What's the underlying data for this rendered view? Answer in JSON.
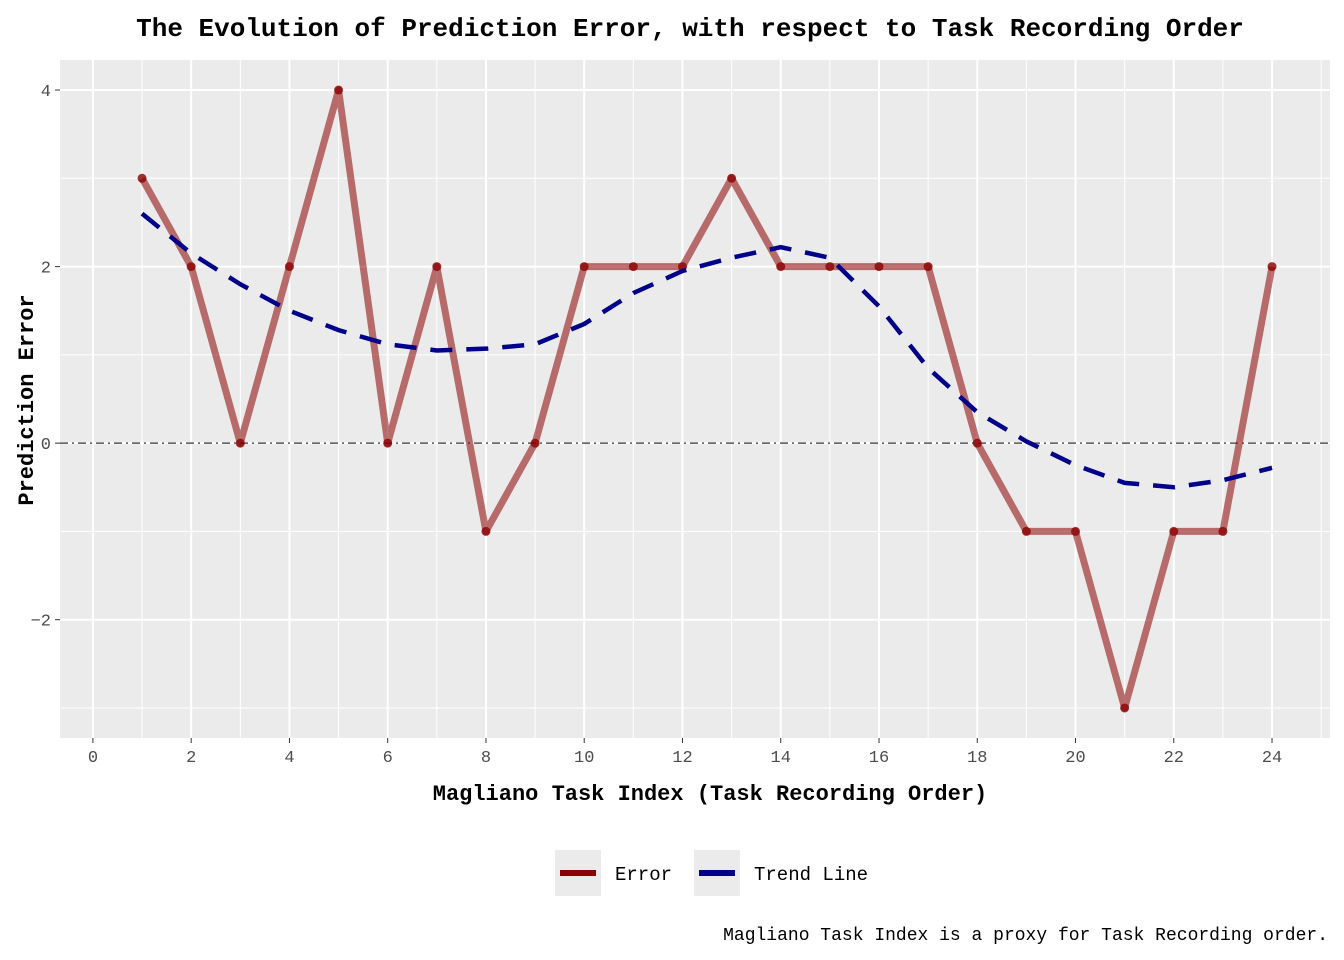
{
  "chart_data": {
    "type": "line",
    "title": "The Evolution of Prediction Error, with respect to Task Recording Order",
    "xlabel": "Magliano Task Index (Task Recording Order)",
    "ylabel": "Prediction Error",
    "caption": "Magliano Task Index is a proxy for Task Recording order.",
    "xlim": [
      -0.67,
      25.18
    ],
    "ylim": [
      -3.34,
      4.34
    ],
    "xticks": [
      0,
      2,
      4,
      6,
      8,
      10,
      12,
      14,
      16,
      18,
      20,
      22,
      24
    ],
    "yticks": [
      -2,
      0,
      2,
      4
    ],
    "grid": true,
    "legend_position": "bottom",
    "reference_line": {
      "y": 0,
      "style": "dash-dot",
      "color": "#555555"
    },
    "series": [
      {
        "name": "Error",
        "color": "#8B0000",
        "x": [
          1,
          2,
          3,
          4,
          5,
          6,
          7,
          8,
          9,
          10,
          11,
          12,
          13,
          14,
          15,
          16,
          17,
          18,
          19,
          20,
          21,
          22,
          23,
          24
        ],
        "y": [
          3,
          2,
          0,
          2,
          4,
          0,
          2,
          -1,
          0,
          2,
          2,
          2,
          3,
          2,
          2,
          2,
          2,
          0,
          -1,
          -1,
          -3,
          -1,
          -1,
          2
        ]
      },
      {
        "name": "Trend Line",
        "color": "#00008B",
        "style": "dashed",
        "x": [
          1,
          2,
          3,
          4,
          5,
          6,
          7,
          8,
          9,
          10,
          11,
          12,
          13,
          14,
          15,
          16,
          17,
          18,
          19,
          20,
          21,
          22,
          23,
          24
        ],
        "y": [
          2.6,
          2.15,
          1.8,
          1.5,
          1.28,
          1.12,
          1.05,
          1.07,
          1.12,
          1.35,
          1.7,
          1.95,
          2.1,
          2.22,
          2.1,
          1.55,
          0.85,
          0.35,
          0.02,
          -0.25,
          -0.45,
          -0.5,
          -0.42,
          -0.28
        ]
      }
    ]
  }
}
